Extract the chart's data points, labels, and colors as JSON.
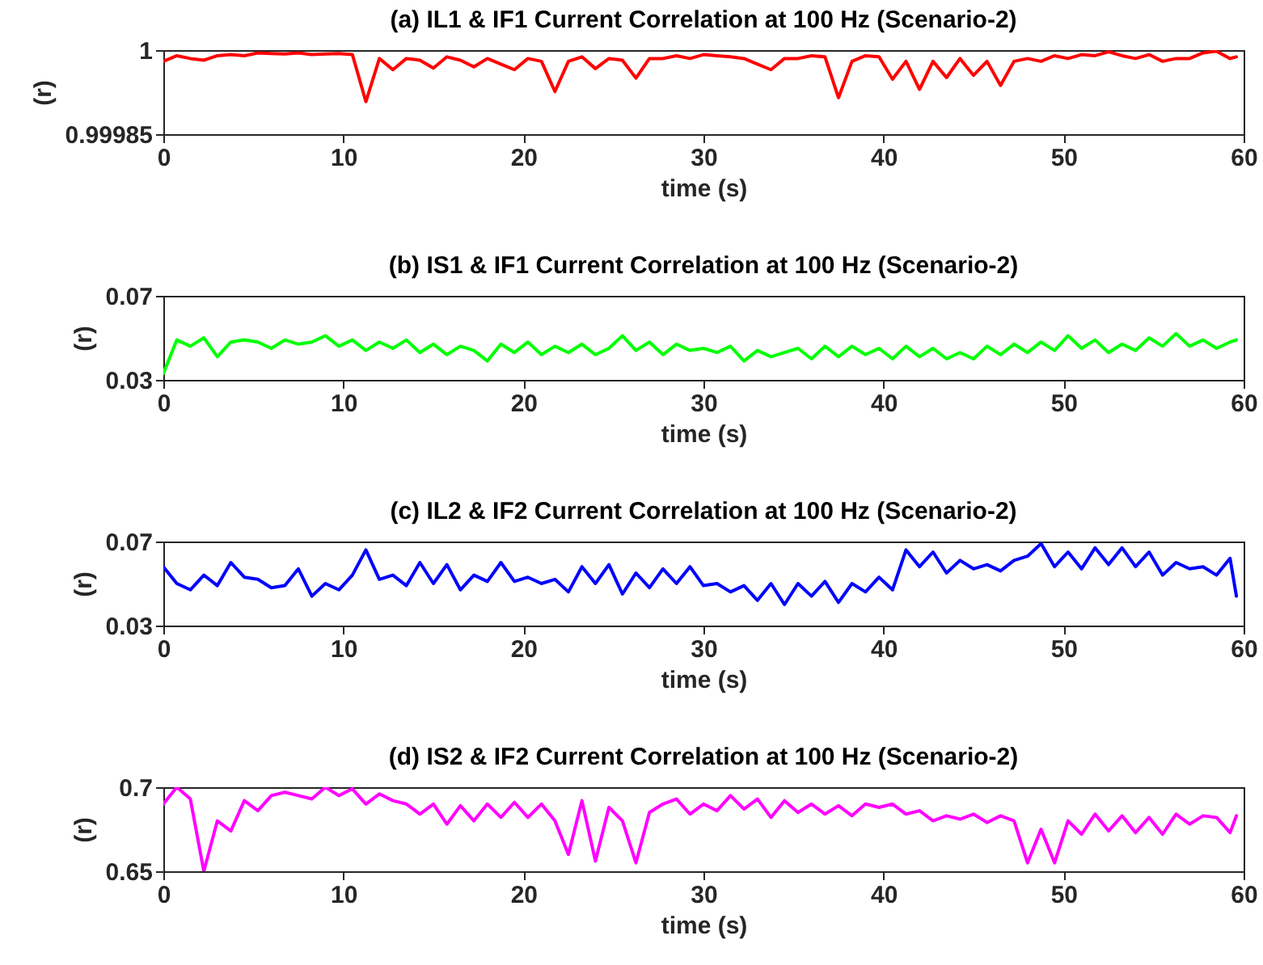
{
  "chart_data": [
    {
      "type": "line",
      "title": "(a) IL1 & IF1 Current Correlation at 100 Hz (Scenario-2)",
      "xlabel": "time (s)",
      "ylabel": "(r)",
      "xlim": [
        0,
        60
      ],
      "xticks": [
        0,
        10,
        20,
        30,
        40,
        50,
        60
      ],
      "ylim": [
        0.99985,
        1
      ],
      "yticks": [
        0.99985,
        1
      ],
      "x": [
        0,
        0.75,
        1.5,
        2.25,
        3,
        3.75,
        4.5,
        5.25,
        6,
        6.75,
        7.5,
        8.25,
        9,
        9.75,
        10.5,
        11.25,
        12,
        12.75,
        13.5,
        14.25,
        15,
        15.75,
        16.5,
        17.25,
        18,
        18.75,
        19.5,
        20.25,
        21,
        21.75,
        22.5,
        23.25,
        24,
        24.75,
        25.5,
        26.25,
        27,
        27.75,
        28.5,
        29.25,
        30,
        30.75,
        31.5,
        32.25,
        33,
        33.75,
        34.5,
        35.25,
        36,
        36.75,
        37.5,
        38.25,
        39,
        39.75,
        40.5,
        41.25,
        42,
        42.75,
        43.5,
        44.25,
        45,
        45.75,
        46.5,
        47.25,
        48,
        48.75,
        49.5,
        50.25,
        51,
        51.75,
        52.5,
        53.25,
        54,
        54.75,
        55.5,
        56.25,
        57,
        57.75,
        58.5,
        59.25,
        59.6
      ],
      "series": [
        {
          "color": "#ff0000",
          "values": [
            0.99998,
            0.99999,
            0.999985,
            0.999982,
            0.99999,
            0.999992,
            0.99999,
            0.999995,
            0.999994,
            0.999993,
            0.999995,
            0.999992,
            0.999993,
            0.999994,
            0.999992,
            0.999908,
            0.999985,
            0.999965,
            0.999985,
            0.999982,
            0.999968,
            0.999988,
            0.999982,
            0.99997,
            0.999985,
            0.999975,
            0.999965,
            0.999985,
            0.99998,
            0.999926,
            0.99998,
            0.999988,
            0.999967,
            0.999985,
            0.999982,
            0.99995,
            0.999985,
            0.999985,
            0.99999,
            0.999985,
            0.999992,
            0.99999,
            0.999988,
            0.999985,
            0.999975,
            0.999965,
            0.999985,
            0.999985,
            0.99999,
            0.999988,
            0.999915,
            0.99998,
            0.99999,
            0.999988,
            0.999948,
            0.99998,
            0.99993,
            0.99998,
            0.999951,
            0.999985,
            0.999955,
            0.99998,
            0.999937,
            0.99998,
            0.999985,
            0.99998,
            0.99999,
            0.999985,
            0.999992,
            0.99999,
            0.999997,
            0.99999,
            0.999985,
            0.999992,
            0.99998,
            0.999985,
            0.999985,
            0.999995,
            0.999998,
            0.999985,
            0.999988
          ]
        }
      ]
    },
    {
      "type": "line",
      "title": "(b) IS1 & IF1 Current Correlation at 100 Hz (Scenario-2)",
      "xlabel": "time (s)",
      "ylabel": "(r)",
      "xlim": [
        0,
        60
      ],
      "xticks": [
        0,
        10,
        20,
        30,
        40,
        50,
        60
      ],
      "ylim": [
        0.03,
        0.07
      ],
      "yticks": [
        0.03,
        0.07
      ],
      "x": [
        0,
        0.75,
        1.5,
        2.25,
        3,
        3.75,
        4.5,
        5.25,
        6,
        6.75,
        7.5,
        8.25,
        9,
        9.75,
        10.5,
        11.25,
        12,
        12.75,
        13.5,
        14.25,
        15,
        15.75,
        16.5,
        17.25,
        18,
        18.75,
        19.5,
        20.25,
        21,
        21.75,
        22.5,
        23.25,
        24,
        24.75,
        25.5,
        26.25,
        27,
        27.75,
        28.5,
        29.25,
        30,
        30.75,
        31.5,
        32.25,
        33,
        33.75,
        34.5,
        35.25,
        36,
        36.75,
        37.5,
        38.25,
        39,
        39.75,
        40.5,
        41.25,
        42,
        42.75,
        43.5,
        44.25,
        45,
        45.75,
        46.5,
        47.25,
        48,
        48.75,
        49.5,
        50.25,
        51,
        51.75,
        52.5,
        53.25,
        54,
        54.75,
        55.5,
        56.25,
        57,
        57.75,
        58.5,
        59.25,
        59.6
      ],
      "series": [
        {
          "color": "#00ff00",
          "values": [
            0.033,
            0.049,
            0.046,
            0.05,
            0.041,
            0.048,
            0.049,
            0.048,
            0.045,
            0.049,
            0.047,
            0.048,
            0.051,
            0.046,
            0.049,
            0.044,
            0.048,
            0.045,
            0.049,
            0.043,
            0.047,
            0.042,
            0.046,
            0.044,
            0.039,
            0.047,
            0.043,
            0.048,
            0.042,
            0.046,
            0.043,
            0.047,
            0.042,
            0.045,
            0.051,
            0.044,
            0.048,
            0.042,
            0.047,
            0.044,
            0.045,
            0.043,
            0.046,
            0.039,
            0.044,
            0.041,
            0.043,
            0.045,
            0.04,
            0.046,
            0.041,
            0.046,
            0.042,
            0.045,
            0.04,
            0.046,
            0.041,
            0.045,
            0.04,
            0.043,
            0.04,
            0.046,
            0.042,
            0.047,
            0.043,
            0.048,
            0.044,
            0.051,
            0.045,
            0.049,
            0.043,
            0.047,
            0.044,
            0.05,
            0.046,
            0.052,
            0.046,
            0.049,
            0.045,
            0.048,
            0.049
          ]
        }
      ]
    },
    {
      "type": "line",
      "title": "(c) IL2 & IF2 Current Correlation at 100 Hz (Scenario-2)",
      "xlabel": "time (s)",
      "ylabel": "(r)",
      "xlim": [
        0,
        60
      ],
      "xticks": [
        0,
        10,
        20,
        30,
        40,
        50,
        60
      ],
      "ylim": [
        0.03,
        0.07
      ],
      "yticks": [
        0.03,
        0.07
      ],
      "x": [
        0,
        0.75,
        1.5,
        2.25,
        3,
        3.75,
        4.5,
        5.25,
        6,
        6.75,
        7.5,
        8.25,
        9,
        9.75,
        10.5,
        11.25,
        12,
        12.75,
        13.5,
        14.25,
        15,
        15.75,
        16.5,
        17.25,
        18,
        18.75,
        19.5,
        20.25,
        21,
        21.75,
        22.5,
        23.25,
        24,
        24.75,
        25.5,
        26.25,
        27,
        27.75,
        28.5,
        29.25,
        30,
        30.75,
        31.5,
        32.25,
        33,
        33.75,
        34.5,
        35.25,
        36,
        36.75,
        37.5,
        38.25,
        39,
        39.75,
        40.5,
        41.25,
        42,
        42.75,
        43.5,
        44.25,
        45,
        45.75,
        46.5,
        47.25,
        48,
        48.75,
        49.5,
        50.25,
        51,
        51.75,
        52.5,
        53.25,
        54,
        54.75,
        55.5,
        56.25,
        57,
        57.75,
        58.5,
        59.25,
        59.6
      ],
      "series": [
        {
          "color": "#0000ff",
          "values": [
            0.058,
            0.05,
            0.047,
            0.054,
            0.049,
            0.06,
            0.053,
            0.052,
            0.048,
            0.049,
            0.057,
            0.044,
            0.05,
            0.047,
            0.054,
            0.066,
            0.052,
            0.054,
            0.049,
            0.06,
            0.05,
            0.059,
            0.047,
            0.054,
            0.051,
            0.06,
            0.051,
            0.053,
            0.05,
            0.052,
            0.046,
            0.058,
            0.05,
            0.059,
            0.045,
            0.055,
            0.048,
            0.057,
            0.05,
            0.058,
            0.049,
            0.05,
            0.046,
            0.049,
            0.042,
            0.05,
            0.04,
            0.05,
            0.044,
            0.051,
            0.041,
            0.05,
            0.046,
            0.053,
            0.047,
            0.066,
            0.058,
            0.065,
            0.055,
            0.061,
            0.057,
            0.059,
            0.056,
            0.061,
            0.063,
            0.069,
            0.058,
            0.065,
            0.057,
            0.067,
            0.059,
            0.067,
            0.058,
            0.065,
            0.054,
            0.06,
            0.057,
            0.058,
            0.054,
            0.062,
            0.044
          ]
        }
      ]
    },
    {
      "type": "line",
      "title": "(d) IS2 & IF2 Current Correlation at 100 Hz (Scenario-2)",
      "xlabel": "time (s)",
      "ylabel": "(r)",
      "xlim": [
        0,
        60
      ],
      "xticks": [
        0,
        10,
        20,
        30,
        40,
        50,
        60
      ],
      "ylim": [
        0.65,
        0.7
      ],
      "yticks": [
        0.65,
        0.7
      ],
      "x": [
        0,
        0.75,
        1.5,
        2.25,
        3,
        3.75,
        4.5,
        5.25,
        6,
        6.75,
        7.5,
        8.25,
        9,
        9.75,
        10.5,
        11.25,
        12,
        12.75,
        13.5,
        14.25,
        15,
        15.75,
        16.5,
        17.25,
        18,
        18.75,
        19.5,
        20.25,
        21,
        21.75,
        22.5,
        23.25,
        24,
        24.75,
        25.5,
        26.25,
        27,
        27.75,
        28.5,
        29.25,
        30,
        30.75,
        31.5,
        32.25,
        33,
        33.75,
        34.5,
        35.25,
        36,
        36.75,
        37.5,
        38.25,
        39,
        39.75,
        40.5,
        41.25,
        42,
        42.75,
        43.5,
        44.25,
        45,
        45.75,
        46.5,
        47.25,
        48,
        48.75,
        49.5,
        50.25,
        51,
        51.75,
        52.5,
        53.25,
        54,
        54.75,
        55.5,
        56.25,
        57,
        57.75,
        58.5,
        59.25,
        59.6
      ],
      "series": [
        {
          "color": "#ff00ff",
          "values": [
            0.69,
            0.7,
            0.693,
            0.65,
            0.68,
            0.674,
            0.692,
            0.686,
            0.695,
            0.697,
            0.695,
            0.693,
            0.7,
            0.695,
            0.699,
            0.69,
            0.696,
            0.692,
            0.69,
            0.684,
            0.69,
            0.678,
            0.689,
            0.68,
            0.69,
            0.682,
            0.691,
            0.682,
            0.69,
            0.68,
            0.66,
            0.692,
            0.656,
            0.688,
            0.68,
            0.655,
            0.685,
            0.69,
            0.693,
            0.684,
            0.69,
            0.686,
            0.695,
            0.687,
            0.693,
            0.682,
            0.692,
            0.685,
            0.69,
            0.684,
            0.689,
            0.683,
            0.69,
            0.688,
            0.69,
            0.684,
            0.686,
            0.68,
            0.683,
            0.681,
            0.684,
            0.679,
            0.683,
            0.68,
            0.655,
            0.675,
            0.655,
            0.68,
            0.672,
            0.684,
            0.674,
            0.683,
            0.673,
            0.682,
            0.672,
            0.684,
            0.678,
            0.683,
            0.682,
            0.673,
            0.683
          ]
        }
      ]
    }
  ]
}
